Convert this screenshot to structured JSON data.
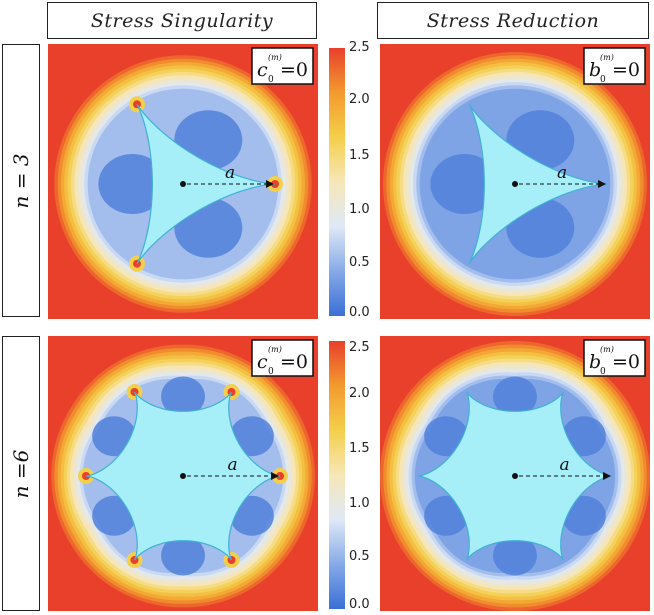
{
  "columns": [
    {
      "title": "Stress Singularity"
    },
    {
      "title": "Stress Reduction"
    }
  ],
  "rows": [
    {
      "label": "n = 3",
      "n": 3
    },
    {
      "label": "n =6",
      "n": 6
    }
  ],
  "panels": [
    {
      "id": "r1c1",
      "n": 3,
      "mode": "singularity",
      "condition_symbol": "c",
      "condition_value": "=0",
      "radius_label": "a"
    },
    {
      "id": "r1c2",
      "n": 3,
      "mode": "reduction",
      "condition_symbol": "b",
      "condition_value": "=0",
      "radius_label": "a"
    },
    {
      "id": "r2c1",
      "n": 6,
      "mode": "singularity",
      "condition_symbol": "c",
      "condition_value": "=0",
      "radius_label": "a"
    },
    {
      "id": "r2c2",
      "n": 6,
      "mode": "reduction",
      "condition_symbol": "b",
      "condition_value": "=0",
      "radius_label": "a"
    }
  ],
  "colorbar": {
    "min": 0.0,
    "max": 2.5,
    "ticks": [
      "2.5",
      "2.0",
      "1.5",
      "1.0",
      "0.5",
      "0.0"
    ],
    "colors": [
      "#3b6fd6",
      "#86aae8",
      "#dfe8f6",
      "#f7e7b8",
      "#f4cf4b",
      "#f39a2e",
      "#e8402b"
    ]
  },
  "colors": {
    "hole": "#a6eef8",
    "hole_edge": "#3fb0d6",
    "far_field": "#e8402b"
  },
  "superscript": "(m)",
  "subscript": "0"
}
